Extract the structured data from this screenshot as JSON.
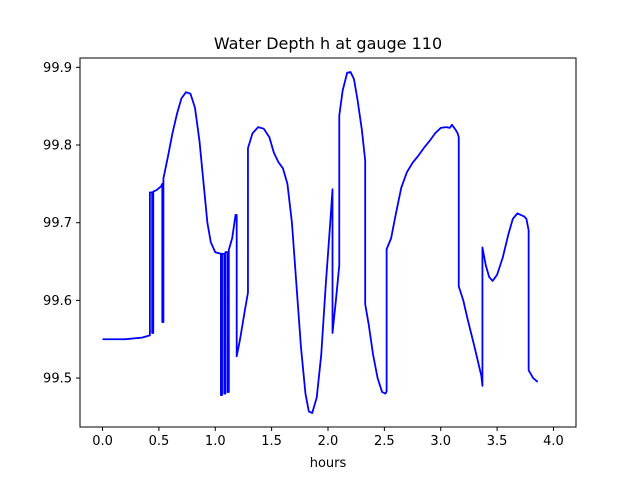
{
  "chart_data": {
    "type": "line",
    "title": "Water Depth h at gauge 110",
    "xlabel": "hours",
    "ylabel": "",
    "xlim": [
      -0.2,
      4.2
    ],
    "ylim": [
      99.437,
      99.912
    ],
    "x_ticks": [
      0.0,
      0.5,
      1.0,
      1.5,
      2.0,
      2.5,
      3.0,
      3.5,
      4.0
    ],
    "x_tick_labels": [
      "0.0",
      "0.5",
      "1.0",
      "1.5",
      "2.0",
      "2.5",
      "3.0",
      "3.5",
      "4.0"
    ],
    "y_ticks": [
      99.5,
      99.6,
      99.7,
      99.8,
      99.9
    ],
    "y_tick_labels": [
      "99.5",
      "99.6",
      "99.7",
      "99.8",
      "99.9"
    ],
    "grid": false,
    "series_color": "#0000ff",
    "series": [
      {
        "name": "",
        "points": [
          [
            0.0,
            99.55
          ],
          [
            0.2,
            99.55
          ],
          [
            0.35,
            99.552
          ],
          [
            0.42,
            99.555
          ],
          [
            0.42,
            99.739
          ],
          [
            0.44,
            99.739
          ],
          [
            0.44,
            99.558
          ],
          [
            0.45,
            99.558
          ],
          [
            0.45,
            99.74
          ],
          [
            0.48,
            99.742
          ],
          [
            0.52,
            99.747
          ],
          [
            0.53,
            99.75
          ],
          [
            0.53,
            99.572
          ],
          [
            0.54,
            99.572
          ],
          [
            0.54,
            99.757
          ],
          [
            0.58,
            99.785
          ],
          [
            0.62,
            99.815
          ],
          [
            0.66,
            99.84
          ],
          [
            0.7,
            99.86
          ],
          [
            0.74,
            99.868
          ],
          [
            0.78,
            99.866
          ],
          [
            0.82,
            99.848
          ],
          [
            0.86,
            99.805
          ],
          [
            0.9,
            99.745
          ],
          [
            0.93,
            99.7
          ],
          [
            0.96,
            99.675
          ],
          [
            1.0,
            99.662
          ],
          [
            1.05,
            99.66
          ],
          [
            1.05,
            99.478
          ],
          [
            1.06,
            99.478
          ],
          [
            1.06,
            99.66
          ],
          [
            1.08,
            99.66
          ],
          [
            1.08,
            99.48
          ],
          [
            1.09,
            99.48
          ],
          [
            1.09,
            99.662
          ],
          [
            1.11,
            99.662
          ],
          [
            1.11,
            99.482
          ],
          [
            1.12,
            99.482
          ],
          [
            1.12,
            99.665
          ],
          [
            1.15,
            99.68
          ],
          [
            1.18,
            99.71
          ],
          [
            1.19,
            99.71
          ],
          [
            1.19,
            99.528
          ],
          [
            1.22,
            99.55
          ],
          [
            1.26,
            99.585
          ],
          [
            1.29,
            99.61
          ],
          [
            1.29,
            99.796
          ],
          [
            1.33,
            99.815
          ],
          [
            1.38,
            99.823
          ],
          [
            1.43,
            99.821
          ],
          [
            1.48,
            99.81
          ],
          [
            1.52,
            99.79
          ],
          [
            1.56,
            99.778
          ],
          [
            1.6,
            99.77
          ],
          [
            1.64,
            99.75
          ],
          [
            1.68,
            99.7
          ],
          [
            1.72,
            99.62
          ],
          [
            1.76,
            99.54
          ],
          [
            1.8,
            99.48
          ],
          [
            1.83,
            99.457
          ],
          [
            1.86,
            99.455
          ],
          [
            1.9,
            99.475
          ],
          [
            1.94,
            99.53
          ],
          [
            1.98,
            99.62
          ],
          [
            2.02,
            99.7
          ],
          [
            2.04,
            99.743
          ],
          [
            2.04,
            99.558
          ],
          [
            2.07,
            99.6
          ],
          [
            2.1,
            99.645
          ],
          [
            2.1,
            99.838
          ],
          [
            2.13,
            99.87
          ],
          [
            2.17,
            99.893
          ],
          [
            2.2,
            99.894
          ],
          [
            2.23,
            99.885
          ],
          [
            2.26,
            99.86
          ],
          [
            2.3,
            99.82
          ],
          [
            2.33,
            99.78
          ],
          [
            2.33,
            99.595
          ],
          [
            2.36,
            99.57
          ],
          [
            2.4,
            99.53
          ],
          [
            2.44,
            99.5
          ],
          [
            2.48,
            99.482
          ],
          [
            2.51,
            99.48
          ],
          [
            2.52,
            99.483
          ],
          [
            2.52,
            99.666
          ],
          [
            2.56,
            99.68
          ],
          [
            2.6,
            99.71
          ],
          [
            2.65,
            99.745
          ],
          [
            2.7,
            99.765
          ],
          [
            2.75,
            99.777
          ],
          [
            2.8,
            99.786
          ],
          [
            2.85,
            99.796
          ],
          [
            2.9,
            99.805
          ],
          [
            2.95,
            99.815
          ],
          [
            3.0,
            99.822
          ],
          [
            3.05,
            99.823
          ],
          [
            3.08,
            99.822
          ],
          [
            3.1,
            99.826
          ],
          [
            3.13,
            99.82
          ],
          [
            3.15,
            99.815
          ],
          [
            3.16,
            99.81
          ],
          [
            3.16,
            99.618
          ],
          [
            3.2,
            99.6
          ],
          [
            3.24,
            99.575
          ],
          [
            3.3,
            99.54
          ],
          [
            3.36,
            99.503
          ],
          [
            3.37,
            99.49
          ],
          [
            3.37,
            99.668
          ],
          [
            3.4,
            99.645
          ],
          [
            3.43,
            99.63
          ],
          [
            3.46,
            99.625
          ],
          [
            3.5,
            99.633
          ],
          [
            3.55,
            99.655
          ],
          [
            3.6,
            99.685
          ],
          [
            3.64,
            99.705
          ],
          [
            3.68,
            99.712
          ],
          [
            3.71,
            99.71
          ],
          [
            3.74,
            99.708
          ],
          [
            3.76,
            99.705
          ],
          [
            3.78,
            99.69
          ],
          [
            3.78,
            99.51
          ],
          [
            3.82,
            99.5
          ],
          [
            3.86,
            99.495
          ]
        ]
      }
    ]
  }
}
